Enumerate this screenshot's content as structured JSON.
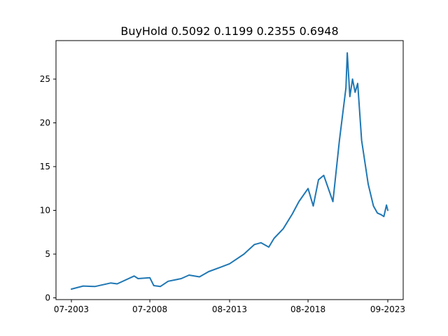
{
  "chart_data": {
    "type": "line",
    "title": "BuyHold  0.5092 0.1199 0.2355 0.6948",
    "xlabel": "",
    "ylabel": "",
    "x_range": [
      "2003-07",
      "2023-09"
    ],
    "ylim": [
      -0.2,
      29.4
    ],
    "grid": false,
    "x_ticks": [
      {
        "label": "07-2003",
        "x": "2003-07"
      },
      {
        "label": "07-2008",
        "x": "2008-07"
      },
      {
        "label": "08-2013",
        "x": "2013-08"
      },
      {
        "label": "08-2018",
        "x": "2018-08"
      },
      {
        "label": "09-2023",
        "x": "2023-09"
      }
    ],
    "y_ticks": [
      {
        "label": "0",
        "value": 0
      },
      {
        "label": "5",
        "value": 5
      },
      {
        "label": "10",
        "value": 10
      },
      {
        "label": "15",
        "value": 15
      },
      {
        "label": "20",
        "value": 20
      },
      {
        "label": "25",
        "value": 25
      }
    ],
    "series": [
      {
        "color": "#1f77b4",
        "x": [
          "2003-07",
          "2004-04",
          "2005-01",
          "2006-01",
          "2006-06",
          "2007-07",
          "2007-10",
          "2008-07",
          "2008-10",
          "2009-03",
          "2009-09",
          "2010-07",
          "2011-01",
          "2011-09",
          "2012-04",
          "2013-01",
          "2013-08",
          "2014-07",
          "2015-03",
          "2015-08",
          "2016-02",
          "2016-06",
          "2017-01",
          "2017-08",
          "2018-01",
          "2018-08",
          "2018-12",
          "2019-04",
          "2019-08",
          "2020-03",
          "2020-08",
          "2021-01",
          "2021-02",
          "2021-04",
          "2021-06",
          "2021-08",
          "2021-10",
          "2022-01",
          "2022-06",
          "2022-10",
          "2023-01",
          "2023-04",
          "2023-06",
          "2023-08",
          "2023-09"
        ],
        "values": [
          1.0,
          1.35,
          1.3,
          1.7,
          1.6,
          2.5,
          2.2,
          2.3,
          1.4,
          1.3,
          1.9,
          2.2,
          2.6,
          2.4,
          3.0,
          3.5,
          3.9,
          5.0,
          6.1,
          6.3,
          5.8,
          6.8,
          7.9,
          9.6,
          11.0,
          12.5,
          10.5,
          13.5,
          14.0,
          11.0,
          18.0,
          24.0,
          28.0,
          23.0,
          25.0,
          23.5,
          24.5,
          18.0,
          13.0,
          10.5,
          9.7,
          9.5,
          9.3,
          10.6,
          10.0
        ]
      }
    ]
  }
}
